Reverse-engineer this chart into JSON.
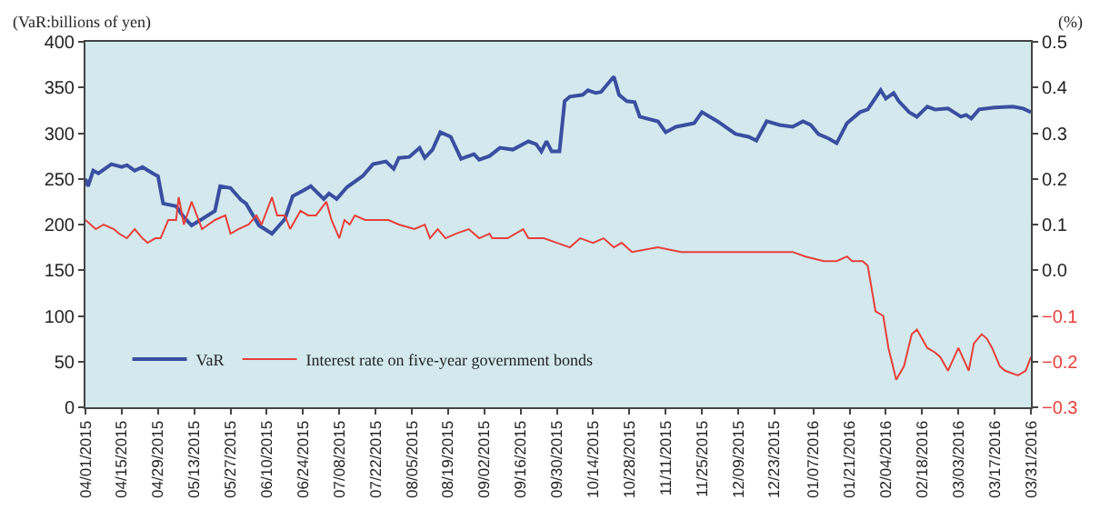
{
  "chart_data": {
    "type": "line",
    "ylabel": "(VaR:billions of yen)",
    "y2label": "(%)",
    "legend": "bottom left",
    "grid": false,
    "marker": "none",
    "line_style": "solid",
    "xlim": [
      "2015-04-01",
      "2016-03-31"
    ],
    "xticks": [
      {
        "value": "2015-04-01",
        "label": "04/01/2015"
      },
      {
        "value": "2015-04-15",
        "label": "04/15/2015"
      },
      {
        "value": "2015-04-29",
        "label": "04/29/2015"
      },
      {
        "value": "2015-05-13",
        "label": "05/13/2015"
      },
      {
        "value": "2015-05-27",
        "label": "05/27/2015"
      },
      {
        "value": "2015-06-10",
        "label": "06/10/2015"
      },
      {
        "value": "2015-06-24",
        "label": "06/24/2015"
      },
      {
        "value": "2015-07-08",
        "label": "07/08/2015"
      },
      {
        "value": "2015-07-22",
        "label": "07/22/2015"
      },
      {
        "value": "2015-08-05",
        "label": "08/05/2015"
      },
      {
        "value": "2015-08-19",
        "label": "08/19/2015"
      },
      {
        "value": "2015-09-02",
        "label": "09/02/2015"
      },
      {
        "value": "2015-09-16",
        "label": "09/16/2015"
      },
      {
        "value": "2015-09-30",
        "label": "09/30/2015"
      },
      {
        "value": "2015-10-14",
        "label": "10/14/2015"
      },
      {
        "value": "2015-10-28",
        "label": "10/28/2015"
      },
      {
        "value": "2015-11-11",
        "label": "11/11/2015"
      },
      {
        "value": "2015-11-25",
        "label": "11/25/2015"
      },
      {
        "value": "2015-12-09",
        "label": "12/09/2015"
      },
      {
        "value": "2015-12-23",
        "label": "12/23/2015"
      },
      {
        "value": "2016-01-07",
        "label": "01/07/2016"
      },
      {
        "value": "2016-01-21",
        "label": "01/21/2016"
      },
      {
        "value": "2016-02-04",
        "label": "02/04/2016"
      },
      {
        "value": "2016-02-18",
        "label": "02/18/2016"
      },
      {
        "value": "2016-03-03",
        "label": "03/03/2016"
      },
      {
        "value": "2016-03-17",
        "label": "03/17/2016"
      },
      {
        "value": "2016-03-31",
        "label": "03/31/2016"
      }
    ],
    "ylim": [
      0,
      400
    ],
    "yticks": [
      0,
      50,
      100,
      150,
      200,
      250,
      300,
      350,
      400
    ],
    "y2lim": [
      -0.3,
      0.5
    ],
    "y2ticks": [
      {
        "value": -0.3,
        "label": "−0.3"
      },
      {
        "value": -0.2,
        "label": "−0.2"
      },
      {
        "value": -0.1,
        "label": "−0.1"
      },
      {
        "value": 0,
        "label": "0.0"
      },
      0.1,
      0.2,
      0.3,
      0.4,
      0.5
    ],
    "series": [
      {
        "name": "VaR",
        "color": "#3a4fa0",
        "x": [
          "2015-04-01",
          "2015-04-02",
          "2015-04-04",
          "2015-04-06",
          "2015-04-11",
          "2015-04-15",
          "2015-04-17",
          "2015-04-20",
          "2015-04-23",
          "2015-04-27",
          "2015-04-29",
          "2015-05-01",
          "2015-05-06",
          "2015-05-09",
          "2015-05-12",
          "2015-05-16",
          "2015-05-21",
          "2015-05-23",
          "2015-05-27",
          "2015-05-31",
          "2015-06-02",
          "2015-06-07",
          "2015-06-12",
          "2015-06-17",
          "2015-06-20",
          "2015-06-24",
          "2015-06-27",
          "2015-07-02",
          "2015-07-04",
          "2015-07-07",
          "2015-07-11",
          "2015-07-17",
          "2015-07-21",
          "2015-07-26",
          "2015-07-29",
          "2015-07-31",
          "2015-08-04",
          "2015-08-08",
          "2015-08-10",
          "2015-08-13",
          "2015-08-16",
          "2015-08-20",
          "2015-08-24",
          "2015-08-29",
          "2015-08-31",
          "2015-09-04",
          "2015-09-08",
          "2015-09-13",
          "2015-09-19",
          "2015-09-22",
          "2015-09-24",
          "2015-09-26",
          "2015-09-28",
          "2015-10-01",
          "2015-10-03",
          "2015-10-05",
          "2015-10-10",
          "2015-10-12",
          "2015-10-15",
          "2015-10-17",
          "2015-10-22",
          "2015-10-24",
          "2015-10-27",
          "2015-10-30",
          "2015-11-01",
          "2015-11-08",
          "2015-11-11",
          "2015-11-15",
          "2015-11-22",
          "2015-11-25",
          "2015-12-01",
          "2015-12-08",
          "2015-12-13",
          "2015-12-16",
          "2015-12-20",
          "2015-12-25",
          "2015-12-30",
          "2016-01-03",
          "2016-01-06",
          "2016-01-09",
          "2016-01-13",
          "2016-01-16",
          "2016-01-20",
          "2016-01-25",
          "2016-01-28",
          "2016-02-02",
          "2016-02-04",
          "2016-02-07",
          "2016-02-09",
          "2016-02-13",
          "2016-02-16",
          "2016-02-20",
          "2016-02-23",
          "2016-02-28",
          "2016-03-04",
          "2016-03-06",
          "2016-03-08",
          "2016-03-11",
          "2016-03-17",
          "2016-03-24",
          "2016-03-28",
          "2016-03-31"
        ],
        "values": [
          250,
          242,
          259,
          256,
          266,
          263,
          265,
          259,
          263,
          256,
          253,
          223,
          220,
          208,
          199,
          206,
          215,
          242,
          240,
          227,
          223,
          199,
          190,
          206,
          231,
          237,
          242,
          228,
          234,
          228,
          241,
          253,
          266,
          269,
          261,
          273,
          274,
          284,
          273,
          282,
          301,
          296,
          272,
          277,
          271,
          275,
          284,
          282,
          291,
          288,
          280,
          291,
          280,
          280,
          335,
          340,
          342,
          347,
          344,
          345,
          362,
          342,
          335,
          334,
          318,
          313,
          301,
          307,
          311,
          323,
          313,
          299,
          296,
          292,
          313,
          309,
          307,
          313,
          309,
          299,
          294,
          289,
          311,
          323,
          326,
          347,
          338,
          344,
          335,
          323,
          318,
          329,
          326,
          327,
          318,
          320,
          316,
          326,
          328,
          329,
          327,
          323
        ]
      },
      {
        "name": "Interest rate on five-year government bonds",
        "color": "#e8403a",
        "axis": "y2",
        "x": [
          "2015-04-01",
          "2015-04-03",
          "2015-04-05",
          "2015-04-08",
          "2015-04-12",
          "2015-04-14",
          "2015-04-17",
          "2015-04-20",
          "2015-04-23",
          "2015-04-25",
          "2015-04-28",
          "2015-04-30",
          "2015-05-03",
          "2015-05-06",
          "2015-05-07",
          "2015-05-09",
          "2015-05-12",
          "2015-05-14",
          "2015-05-16",
          "2015-05-21",
          "2015-05-25",
          "2015-05-27",
          "2015-05-30",
          "2015-06-03",
          "2015-06-06",
          "2015-06-08",
          "2015-06-12",
          "2015-06-14",
          "2015-06-17",
          "2015-06-19",
          "2015-06-23",
          "2015-06-26",
          "2015-06-29",
          "2015-07-03",
          "2015-07-05",
          "2015-07-08",
          "2015-07-10",
          "2015-07-12",
          "2015-07-14",
          "2015-07-18",
          "2015-07-22",
          "2015-07-27",
          "2015-07-31",
          "2015-08-06",
          "2015-08-10",
          "2015-08-12",
          "2015-08-15",
          "2015-08-18",
          "2015-08-22",
          "2015-08-27",
          "2015-08-31",
          "2015-09-04",
          "2015-09-05",
          "2015-09-11",
          "2015-09-17",
          "2015-09-19",
          "2015-09-25",
          "2015-09-30",
          "2015-10-05",
          "2015-10-09",
          "2015-10-14",
          "2015-10-18",
          "2015-10-22",
          "2015-10-25",
          "2015-10-29",
          "2015-11-08",
          "2015-11-17",
          "2015-11-26",
          "2015-12-05",
          "2015-12-14",
          "2015-12-23",
          "2015-12-30",
          "2016-01-04",
          "2016-01-11",
          "2016-01-16",
          "2016-01-20",
          "2016-01-22",
          "2016-01-26",
          "2016-01-28",
          "2016-01-31",
          "2016-02-03",
          "2016-02-05",
          "2016-02-08",
          "2016-02-11",
          "2016-02-14",
          "2016-02-16",
          "2016-02-20",
          "2016-02-23",
          "2016-02-25",
          "2016-02-28",
          "2016-03-03",
          "2016-03-07",
          "2016-03-09",
          "2016-03-12",
          "2016-03-14",
          "2016-03-16",
          "2016-03-19",
          "2016-03-21",
          "2016-03-26",
          "2016-03-29",
          "2016-03-31"
        ],
        "values": [
          0.11,
          0.1,
          0.09,
          0.1,
          0.09,
          0.08,
          0.07,
          0.09,
          0.07,
          0.06,
          0.07,
          0.07,
          0.11,
          0.11,
          0.16,
          0.1,
          0.15,
          0.12,
          0.09,
          0.11,
          0.12,
          0.08,
          0.09,
          0.1,
          0.12,
          0.1,
          0.16,
          0.12,
          0.12,
          0.09,
          0.13,
          0.12,
          0.12,
          0.15,
          0.11,
          0.07,
          0.11,
          0.1,
          0.12,
          0.11,
          0.11,
          0.11,
          0.1,
          0.09,
          0.1,
          0.07,
          0.09,
          0.07,
          0.08,
          0.09,
          0.07,
          0.08,
          0.07,
          0.07,
          0.09,
          0.07,
          0.07,
          0.06,
          0.05,
          0.07,
          0.06,
          0.07,
          0.05,
          0.06,
          0.04,
          0.05,
          0.04,
          0.04,
          0.04,
          0.04,
          0.04,
          0.04,
          0.03,
          0.02,
          0.02,
          0.03,
          0.02,
          0.02,
          0.01,
          -0.09,
          -0.1,
          -0.17,
          -0.24,
          -0.21,
          -0.14,
          -0.13,
          -0.17,
          -0.18,
          -0.19,
          -0.22,
          -0.17,
          -0.22,
          -0.16,
          -0.14,
          -0.15,
          -0.17,
          -0.21,
          -0.22,
          -0.23,
          -0.22,
          -0.19
        ]
      }
    ]
  }
}
